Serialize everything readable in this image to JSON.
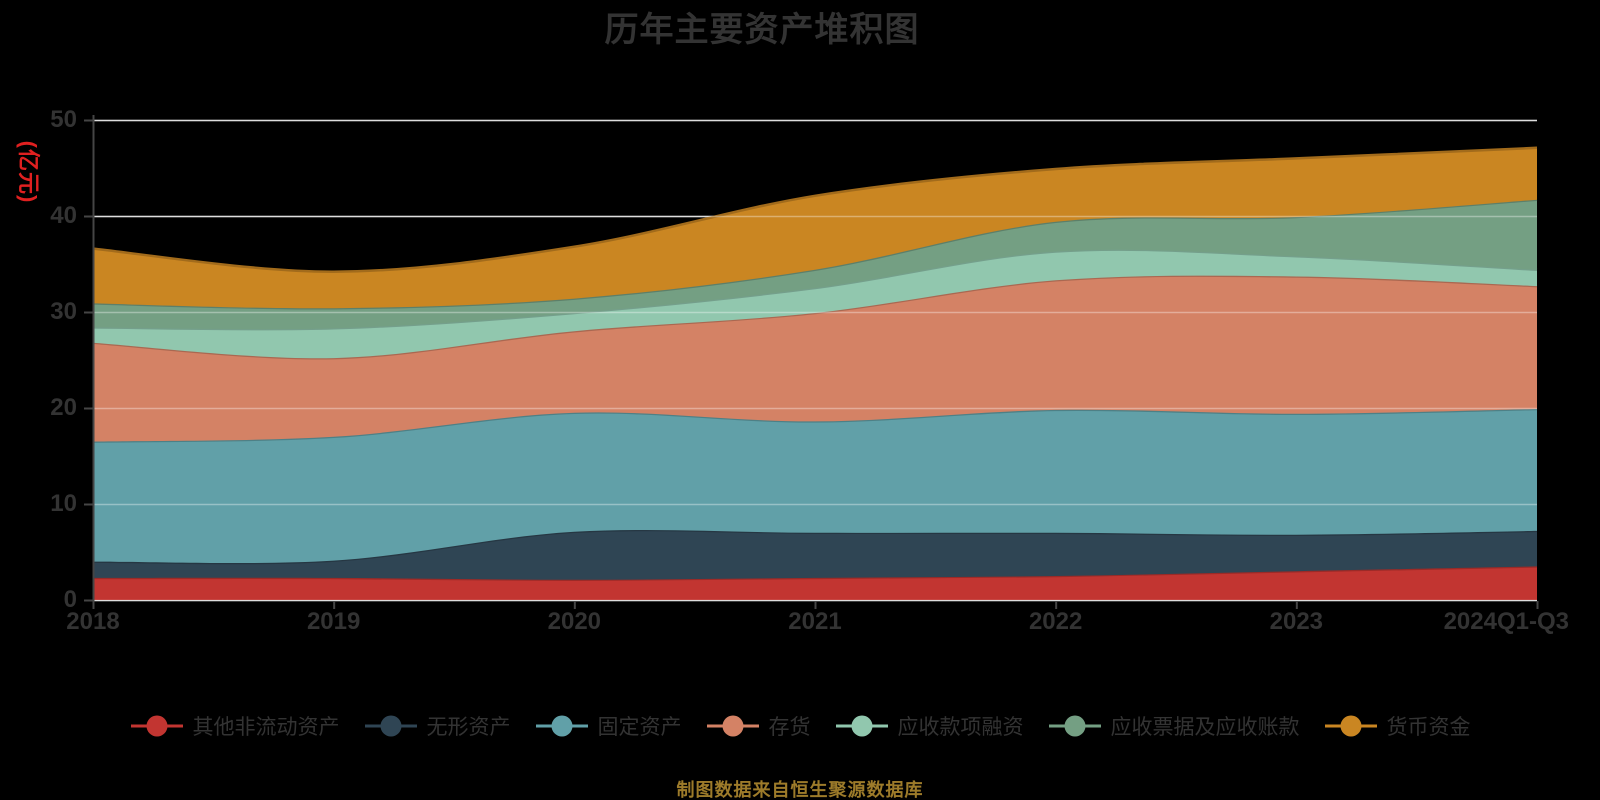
{
  "title": "历年主要资产堆积图",
  "source_note": "制图数据来自恒生聚源数据库",
  "colors": {
    "background": "#000000",
    "text": "#333333",
    "grid": "#cccccc",
    "axis": "#454545",
    "unit_label": "#e02020",
    "source_note": "#9d7b2a"
  },
  "chart_data": {
    "type": "area",
    "stacked": true,
    "smooth": true,
    "title": "历年主要资产堆积图",
    "ylabel": "(亿元)",
    "ylim": [
      0,
      50
    ],
    "yticks": [
      0,
      10,
      20,
      30,
      40,
      50
    ],
    "grid": true,
    "legend_position": "bottom",
    "x": [
      "2018",
      "2019",
      "2020",
      "2021",
      "2022",
      "2023",
      "2024Q1-Q3"
    ],
    "series": [
      {
        "name": "其他非流动资产",
        "color": "#c23531",
        "values": [
          2.3,
          2.3,
          2.1,
          2.3,
          2.5,
          3.0,
          3.5
        ]
      },
      {
        "name": "无形资产",
        "color": "#2f4554",
        "values": [
          1.7,
          1.8,
          5.0,
          4.7,
          4.5,
          3.8,
          3.7
        ]
      },
      {
        "name": "固定资产",
        "color": "#61a0a8",
        "values": [
          12.5,
          12.9,
          12.4,
          11.6,
          12.8,
          12.6,
          12.7
        ]
      },
      {
        "name": "存货",
        "color": "#d48265",
        "values": [
          10.3,
          8.2,
          8.5,
          11.3,
          13.5,
          14.3,
          12.8
        ]
      },
      {
        "name": "应收款项融资",
        "color": "#91c7ae",
        "values": [
          1.6,
          3.1,
          1.9,
          2.6,
          3.0,
          2.1,
          1.7
        ]
      },
      {
        "name": "应收票据及应收账款",
        "color": "#749f83",
        "values": [
          2.5,
          2.1,
          1.5,
          1.9,
          3.1,
          4.1,
          7.3
        ]
      },
      {
        "name": "货币资金",
        "color": "#ca8622",
        "values": [
          5.7,
          3.8,
          5.4,
          7.7,
          5.5,
          6.1,
          5.4
        ]
      }
    ],
    "cumulative_totals": [
      36.6,
      34.2,
      36.8,
      42.1,
      44.9,
      46.0,
      47.1
    ]
  }
}
